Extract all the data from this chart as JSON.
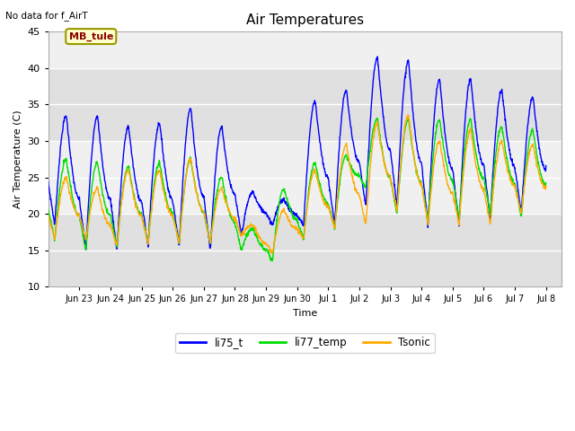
{
  "title": "Air Temperatures",
  "xlabel": "Time",
  "ylabel": "Air Temperature (C)",
  "ylim": [
    10,
    45
  ],
  "yticks": [
    10,
    15,
    20,
    25,
    30,
    35,
    40,
    45
  ],
  "no_data_text": "No data for f_AirT",
  "mb_tule_label": "MB_tule",
  "legend_entries": [
    "li75_t",
    "li77_temp",
    "Tsonic"
  ],
  "line_colors": [
    "#0000ff",
    "#00dd00",
    "#ffaa00"
  ],
  "background_color": "#ffffff",
  "plot_bg_color": "#f0f0f0",
  "band_color": "#e0e0e0",
  "grid_color": "#ffffff",
  "tick_positions": [
    1,
    2,
    3,
    4,
    5,
    6,
    7,
    8,
    9,
    10,
    11,
    12,
    13,
    14,
    15,
    16
  ],
  "tick_labels": [
    "Jun 23",
    "Jun 24",
    "Jun 25",
    "Jun 26",
    "Jun 27",
    "Jun 28",
    "Jun 29",
    "Jun 30",
    "Jul 1",
    "Jul 2",
    "Jul 3",
    "Jul 4",
    "Jul 5",
    "Jul 6",
    "Jul 7",
    "Jul 8"
  ],
  "xlim": [
    0.0,
    16.5
  ],
  "peaks_li75": [
    33.5,
    33.5,
    32.0,
    32.5,
    34.5,
    32.0,
    23.0,
    22.0,
    35.5,
    37.0,
    41.5,
    41.0,
    38.5,
    38.5,
    37.0,
    36.0
  ],
  "troughs_li75": [
    18.5,
    15.0,
    15.0,
    15.5,
    15.5,
    15.0,
    17.0,
    18.5,
    18.5,
    18.5,
    21.0,
    21.0,
    18.5,
    18.5,
    19.5,
    20.0
  ],
  "peaks_li77": [
    27.5,
    27.0,
    26.5,
    27.0,
    27.5,
    25.0,
    18.0,
    23.5,
    27.0,
    28.0,
    33.0,
    33.0,
    33.0,
    33.0,
    32.0,
    31.5
  ],
  "troughs_li77": [
    16.5,
    15.0,
    15.5,
    16.0,
    16.0,
    16.0,
    15.0,
    13.5,
    16.5,
    18.0,
    23.5,
    20.0,
    19.0,
    19.5,
    20.0,
    19.5
  ],
  "peaks_tsonic": [
    25.0,
    23.5,
    26.0,
    26.0,
    27.5,
    23.5,
    18.5,
    20.5,
    26.0,
    29.5,
    32.5,
    33.5,
    30.0,
    31.5,
    30.0,
    29.5
  ],
  "troughs_tsonic": [
    16.5,
    16.5,
    15.5,
    16.0,
    16.0,
    16.0,
    17.0,
    14.5,
    16.5,
    18.0,
    18.5,
    20.5,
    18.5,
    18.5,
    18.5,
    20.0
  ]
}
